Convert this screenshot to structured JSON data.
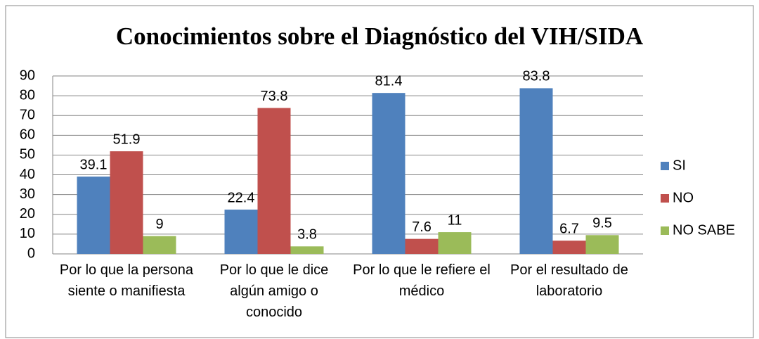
{
  "chart_data": {
    "type": "bar",
    "title": "Conocimientos sobre el Diagnóstico del VIH/SIDA",
    "categories": [
      "Por lo que la persona siente o manifiesta",
      "Por lo que le dice algún amigo o conocido",
      "Por lo que le refiere el médico",
      "Por el resultado de laboratorio"
    ],
    "series": [
      {
        "name": "SI",
        "color": "#4f81bd",
        "values": [
          39.1,
          22.4,
          81.4,
          83.8
        ]
      },
      {
        "name": "NO",
        "color": "#c0504d",
        "values": [
          51.9,
          73.8,
          7.6,
          6.7
        ]
      },
      {
        "name": "NO SABE",
        "color": "#9bbb59",
        "values": [
          9,
          3.8,
          11,
          9.5
        ]
      }
    ],
    "ylim": [
      0,
      90
    ],
    "yticks": [
      0,
      10,
      20,
      30,
      40,
      50,
      60,
      70,
      80,
      90
    ],
    "grid": true,
    "legend": "right"
  }
}
